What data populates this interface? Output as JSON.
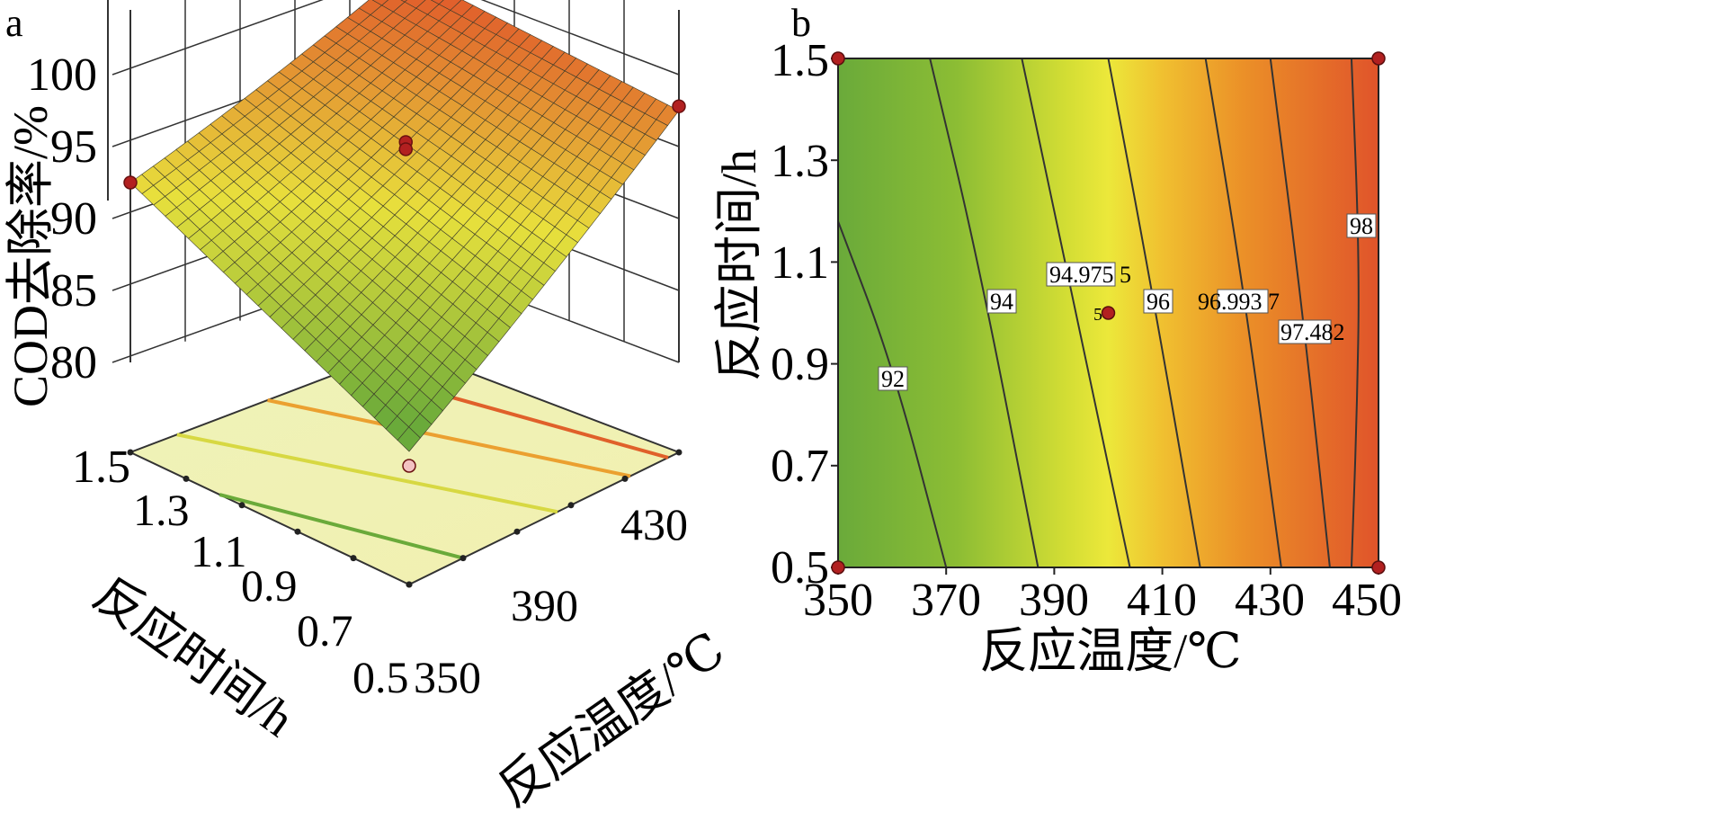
{
  "panels": {
    "a": {
      "label": "a",
      "zlabel": "COD去除率/%",
      "xlabel": "反应温度/℃",
      "ylabel": "反应时间/h",
      "z_ticks": [
        "80",
        "85",
        "90",
        "95",
        "100"
      ],
      "x_ticks": [
        "350",
        "390",
        "430"
      ],
      "y_ticks": [
        "1.5",
        "1.3",
        "1.1",
        "0.9",
        "0.7",
        "0.5"
      ]
    },
    "b": {
      "label": "b",
      "xlabel": "反应温度/℃",
      "ylabel": "反应时间/h",
      "x_ticks": [
        "350",
        "370",
        "390",
        "410",
        "430",
        "450"
      ],
      "y_ticks": [
        "0.5",
        "0.7",
        "0.9",
        "1.1",
        "1.3",
        "1.5"
      ],
      "contour_labels": [
        "92",
        "94",
        "94.975 5",
        "96",
        "96.993 7",
        "97.482",
        "98"
      ],
      "center_point_label": "5"
    }
  },
  "chart_data": [
    {
      "type": "surface",
      "title": "",
      "x_axis": "反应温度/℃",
      "y_axis": "反应时间/h",
      "z_axis": "COD去除率/%",
      "xlim": [
        350,
        450
      ],
      "ylim": [
        0.5,
        1.5
      ],
      "zlim": [
        80,
        100
      ],
      "corner_values": [
        {
          "x": 350,
          "y": 0.5,
          "z": 83.0
        },
        {
          "x": 350,
          "y": 1.5,
          "z": 92.5
        },
        {
          "x": 450,
          "y": 1.5,
          "z": 100.0
        },
        {
          "x": 450,
          "y": 0.5,
          "z": 97.5
        }
      ],
      "design_points": [
        {
          "x": 350,
          "y": 1.5,
          "z": 92.5
        },
        {
          "x": 450,
          "y": 1.5,
          "z": 98.6
        },
        {
          "x": 450,
          "y": 0.5,
          "z": 97.8
        },
        {
          "x": 400,
          "y": 1.0,
          "z": 95.8
        },
        {
          "x": 400,
          "y": 1.0,
          "z": 95.3
        },
        {
          "x": 350,
          "y": 0.5,
          "z": 82.0
        }
      ],
      "colors": {
        "low": "#6aaa3a",
        "mid": "#e8e03c",
        "high": "#e0542a"
      }
    },
    {
      "type": "contour",
      "title": "",
      "xlabel": "反应温度/℃",
      "ylabel": "反应时间/h",
      "xlim": [
        350,
        450
      ],
      "ylim": [
        0.5,
        1.5
      ],
      "contour_levels": [
        92,
        94,
        94.9755,
        96,
        96.9937,
        97.482,
        98
      ],
      "contour_lines": [
        {
          "level": 92,
          "points": [
            [
              350,
              1.18
            ],
            [
              360,
              0.9
            ],
            [
              370,
              0.5
            ]
          ]
        },
        {
          "level": 94,
          "points": [
            [
              367,
              1.5
            ],
            [
              376,
              1.1
            ],
            [
              387,
              0.5
            ]
          ]
        },
        {
          "level": 94.9755,
          "points": [
            [
              384,
              1.5
            ],
            [
              393,
              1.05
            ],
            [
              404,
              0.5
            ]
          ]
        },
        {
          "level": 96,
          "points": [
            [
              400,
              1.5
            ],
            [
              408,
              1.05
            ],
            [
              417,
              0.5
            ]
          ]
        },
        {
          "level": 96.9937,
          "points": [
            [
              418,
              1.5
            ],
            [
              425,
              1.05
            ],
            [
              432,
              0.5
            ]
          ]
        },
        {
          "level": 97.482,
          "points": [
            [
              430,
              1.5
            ],
            [
              436,
              1.0
            ],
            [
              441,
              0.5
            ]
          ]
        },
        {
          "level": 98,
          "points": [
            [
              445,
              1.5
            ],
            [
              446.5,
              1.1
            ],
            [
              446,
              0.8
            ],
            [
              445,
              0.5
            ]
          ]
        }
      ],
      "design_points": [
        {
          "x": 350,
          "y": 1.5
        },
        {
          "x": 450,
          "y": 1.5
        },
        {
          "x": 350,
          "y": 0.5
        },
        {
          "x": 450,
          "y": 0.5
        },
        {
          "x": 400,
          "y": 1.0,
          "replicates": "5"
        }
      ],
      "colors": {
        "low": "#6aaa3a",
        "mid": "#ece83a",
        "high": "#e0542a",
        "point": "#b22020",
        "line": "#333333"
      }
    }
  ]
}
